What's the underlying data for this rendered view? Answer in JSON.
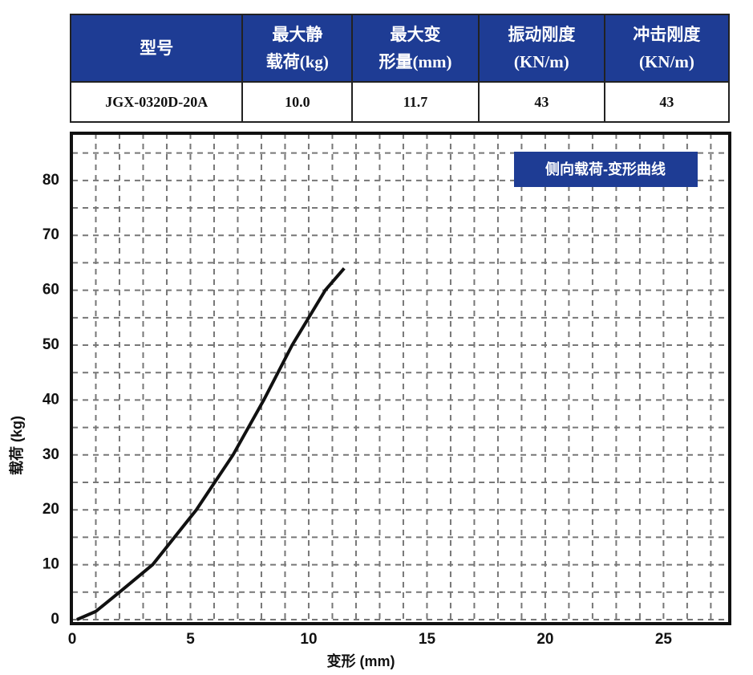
{
  "table": {
    "header": [
      [
        "型号"
      ],
      [
        "最大静",
        "载荷(kg)"
      ],
      [
        "最大变",
        "形量(mm)"
      ],
      [
        "振动刚度",
        "(KN/m)"
      ],
      [
        "冲击刚度",
        "(KN/m)"
      ]
    ],
    "rows": [
      [
        "JGX-0320D-20A",
        "10.0",
        "11.7",
        "43",
        "43"
      ]
    ]
  },
  "chart_data": {
    "type": "line",
    "title": "侧向载荷-变形曲线",
    "x_label": "变形 (mm)",
    "y_label": "载荷 (kg)",
    "series": [
      {
        "name": "侧向载荷-变形曲线",
        "color": "#111111",
        "x": [
          0.2,
          1,
          2,
          3.4,
          5.25,
          6.8,
          8.1,
          9.3,
          10.7,
          11.5
        ],
        "values": [
          0,
          1.5,
          5,
          10,
          20,
          30,
          40,
          50,
          60,
          64
        ]
      }
    ],
    "xlim": [
      0,
      27.8
    ],
    "ylim": [
      0,
      88.6
    ],
    "xticks": [
      0,
      5,
      10,
      15,
      20,
      25
    ],
    "yticks": [
      0,
      10,
      20,
      30,
      40,
      50,
      60,
      70,
      80
    ],
    "grid": true
  }
}
